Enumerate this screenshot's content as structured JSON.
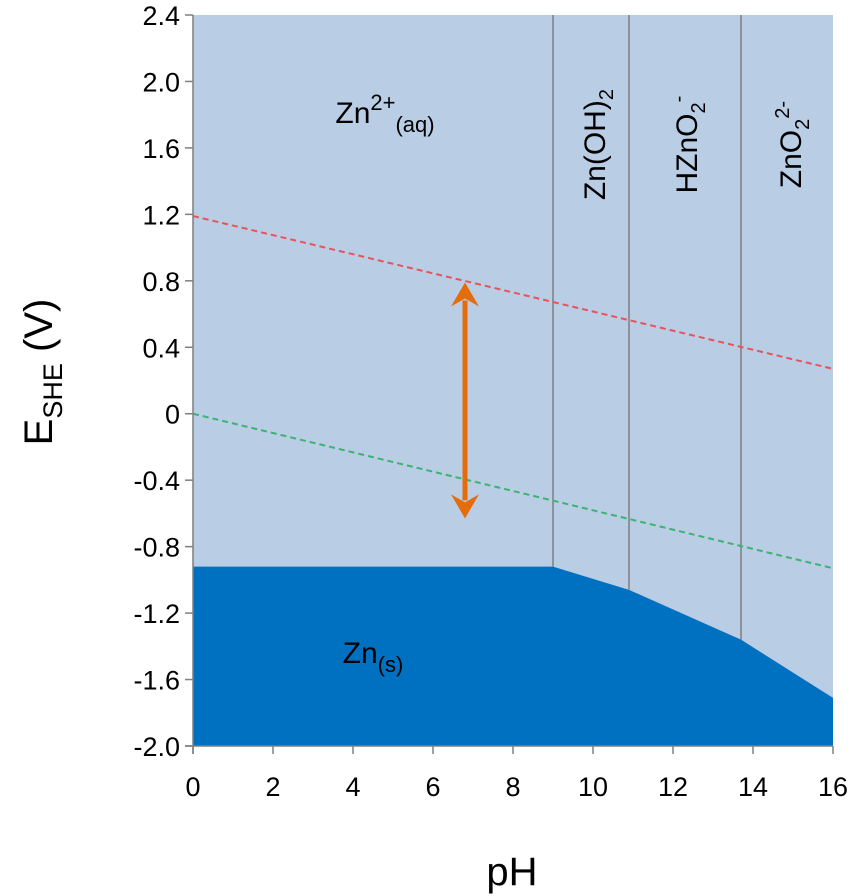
{
  "chart_data": {
    "type": "area",
    "xlabel": "pH",
    "ylabel": {
      "main": "E",
      "sub": "SHE",
      "unit": " (V)"
    },
    "xlim": [
      0,
      16
    ],
    "ylim": [
      -2.0,
      2.4
    ],
    "x_ticks": [
      "0",
      "2",
      "4",
      "6",
      "8",
      "10",
      "12",
      "14",
      "16"
    ],
    "y_ticks": [
      "2.4",
      "2.0",
      "1.6",
      "1.2",
      "0.8",
      "0.4",
      "0",
      "-0.4",
      "-0.8",
      "-1.2",
      "-1.6",
      "-2.0"
    ],
    "grid": false,
    "colors": {
      "aqueous_region": "#b9cde5",
      "solid_region": "#0070c0",
      "oxygen_line": "#e8535b",
      "hydrogen_line": "#3cb371",
      "arrow": "#e46c0a",
      "boundary": "#7f7f7f"
    },
    "solid_boundary": [
      [
        0,
        -0.92
      ],
      [
        9.0,
        -0.92
      ],
      [
        10.9,
        -1.06
      ],
      [
        13.7,
        -1.36
      ],
      [
        16,
        -1.71
      ]
    ],
    "vertical_boundaries": [
      {
        "x": 9.0,
        "y_bottom": -0.92
      },
      {
        "x": 10.9,
        "y_bottom": -1.06
      },
      {
        "x": 13.7,
        "y_bottom": -1.36
      }
    ],
    "dashed_lines": [
      {
        "color_key": "oxygen_line",
        "points": [
          [
            0,
            1.19
          ],
          [
            16,
            0.27
          ]
        ]
      },
      {
        "color_key": "hydrogen_line",
        "points": [
          [
            0,
            0.0
          ],
          [
            16,
            -0.93
          ]
        ]
      }
    ],
    "arrow": {
      "x": 6.8,
      "y_top": 0.79,
      "y_bottom": -0.63
    },
    "regions": [
      {
        "base": "Zn",
        "sup": "2+",
        "sub": "(aq)",
        "x": 4.8,
        "y": 1.75,
        "rotate": false
      },
      {
        "base": "Zn",
        "sup": "",
        "sub": "(s)",
        "x": 4.5,
        "y": -1.5,
        "rotate": false
      },
      {
        "base": "Zn(OH)",
        "sup": "",
        "sub": "2",
        "x": 10.05,
        "y": 1.62,
        "rotate": true
      },
      {
        "base": "HZnO",
        "sup": "-",
        "sub": "2",
        "x": 12.35,
        "y": 1.62,
        "rotate": true
      },
      {
        "base": "ZnO",
        "sup": "2-",
        "sub": "2",
        "x": 14.95,
        "y": 1.62,
        "rotate": true
      }
    ]
  }
}
